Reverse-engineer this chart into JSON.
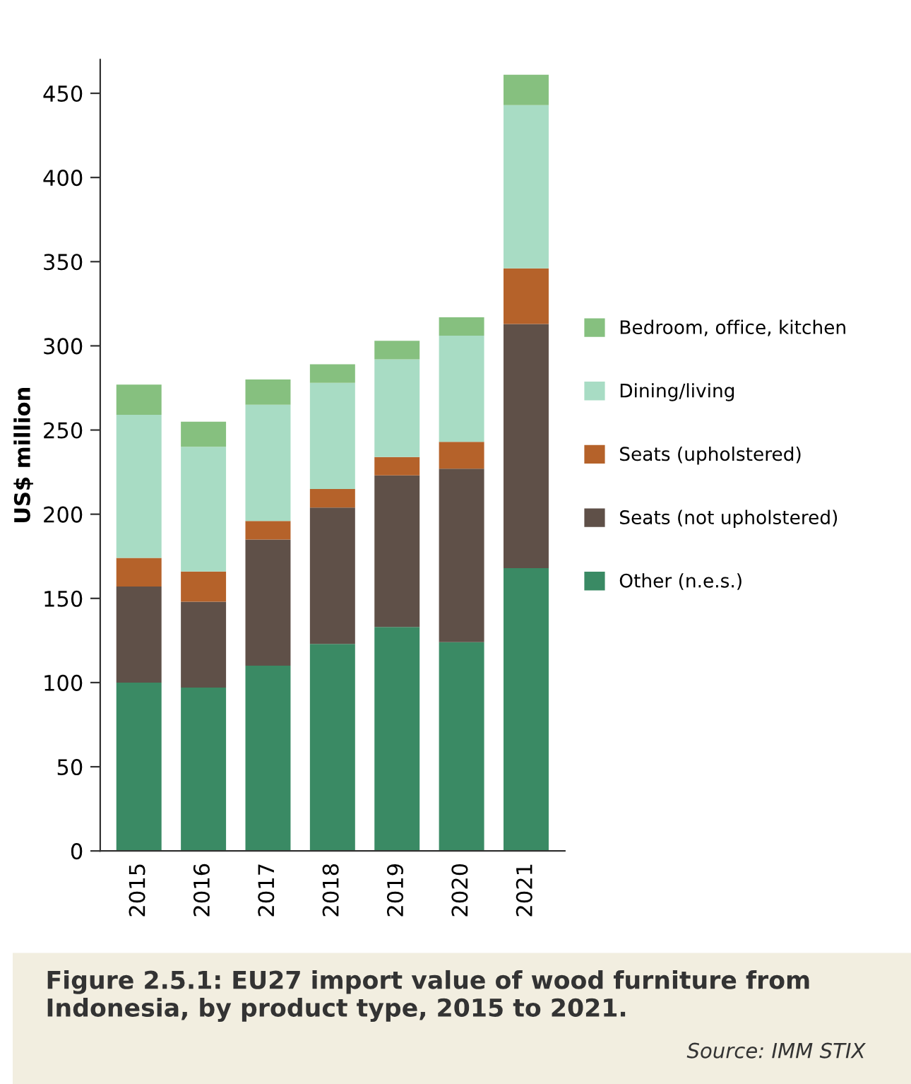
{
  "chart_data": {
    "type": "bar",
    "stacked": true,
    "title": "Figure 2.5.1: EU27 import value of wood furniture from Indonesia, by product type, 2015 to 2021.",
    "annotations": [
      "Source: IMM STIX"
    ],
    "ylabel": "US$ million",
    "categories": [
      "2015",
      "2016",
      "2017",
      "2018",
      "2019",
      "2020",
      "2021"
    ],
    "series": [
      {
        "name": "Other (n.e.s.)",
        "color": "#3a8a64",
        "values": [
          100,
          97,
          110,
          123,
          133,
          124,
          168
        ]
      },
      {
        "name": "Seats (not upholstered)",
        "color": "#5f5048",
        "values": [
          57,
          51,
          75,
          81,
          90,
          103,
          145
        ]
      },
      {
        "name": "Seats (upholstered)",
        "color": "#b5622a",
        "values": [
          17,
          18,
          11,
          11,
          11,
          16,
          33
        ]
      },
      {
        "name": "Dining/living",
        "color": "#a8dcc4",
        "values": [
          85,
          74,
          69,
          63,
          58,
          63,
          97
        ]
      },
      {
        "name": "Bedroom, office, kitchen",
        "color": "#86c07f",
        "values": [
          18,
          15,
          15,
          11,
          11,
          11,
          18
        ]
      }
    ],
    "ylim": [
      0,
      470
    ],
    "yticks": [
      0,
      50,
      100,
      150,
      200,
      250,
      300,
      350,
      400,
      450
    ],
    "grid": false,
    "legend": "right"
  }
}
